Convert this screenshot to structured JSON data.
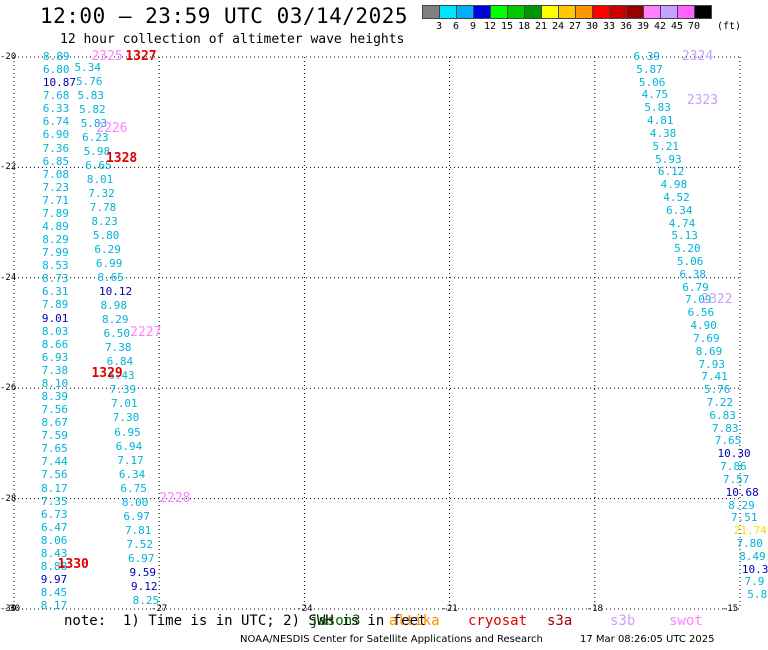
{
  "header": {
    "title": "12:00 — 23:59 UTC 03/14/2025",
    "subtitle": "12 hour collection of altimeter wave heights"
  },
  "colorbar": {
    "colors": [
      "#808080",
      "#00e5ff",
      "#00b0ff",
      "#0000e0",
      "#00ff00",
      "#00c800",
      "#009600",
      "#ffff00",
      "#ffc800",
      "#ff9600",
      "#ff0000",
      "#c80000",
      "#960000",
      "#ff80ff",
      "#c8a0ff",
      "#ff64ff",
      "#000000"
    ],
    "ticks": [
      "3",
      "6",
      "9",
      "12",
      "15",
      "18",
      "21",
      "24",
      "27",
      "30",
      "33",
      "36",
      "39",
      "42",
      "45",
      "70"
    ],
    "unit": "(ft)"
  },
  "axes": {
    "y_ticks": [
      "-20",
      "-22",
      "-24",
      "-26",
      "-28",
      "-30"
    ],
    "x_ticks": [
      "-30",
      "-27",
      "-24",
      "-21",
      "-18",
      "-15"
    ]
  },
  "passes": [
    {
      "id": "1327",
      "sat": "cryosat",
      "lon": -27.7,
      "lat": -20.0
    },
    {
      "id": "2325",
      "sat": "swot",
      "lon": -28.4,
      "lat": -20.0
    },
    {
      "id": "2226",
      "sat": "swot",
      "lon": -28.3,
      "lat": -21.3
    },
    {
      "id": "1328",
      "sat": "cryosat",
      "lon": -28.1,
      "lat": -21.85
    },
    {
      "id": "2227",
      "sat": "swot",
      "lon": -27.6,
      "lat": -25.0
    },
    {
      "id": "1329",
      "sat": "cryosat",
      "lon": -28.4,
      "lat": -25.75
    },
    {
      "id": "2228",
      "sat": "swot",
      "lon": -27.0,
      "lat": -28.0
    },
    {
      "id": "1330",
      "sat": "cryosat",
      "lon": -29.1,
      "lat": -29.2
    },
    {
      "id": "2324",
      "sat": "s3b",
      "lon": -16.2,
      "lat": -20.0
    },
    {
      "id": "2323",
      "sat": "s3b",
      "lon": -16.1,
      "lat": -20.8
    },
    {
      "id": "2322",
      "sat": "s3b",
      "lon": -15.8,
      "lat": -24.4
    }
  ],
  "tracks": [
    {
      "name": "track_a",
      "values": [
        "8.89",
        "6.80",
        "10.87",
        "7.68",
        "6.33",
        "6.74",
        "6.90",
        "7.36",
        "6.85",
        "7.08",
        "7.23",
        "7.71",
        "7.89",
        "4.89",
        "8.29",
        "7.99",
        "8.53",
        "8.73",
        "6.31",
        "7.89",
        "9.01",
        "8.03",
        "8.66",
        "6.93",
        "7.38",
        "8.10",
        "8.39",
        "7.56",
        "8.67",
        "7.59",
        "7.65",
        "7.44",
        "7.56",
        "8.17",
        "7.35",
        "6.73",
        "6.47",
        "8.06",
        "8.43",
        "8.88",
        "9.97",
        "8.45",
        "8.17"
      ],
      "colors": [
        "c",
        "c",
        "b",
        "c",
        "c",
        "c",
        "c",
        "c",
        "c",
        "c",
        "c",
        "c",
        "c",
        "c",
        "c",
        "c",
        "c",
        "c",
        "c",
        "c",
        "b",
        "c",
        "c",
        "c",
        "c",
        "c",
        "c",
        "c",
        "c",
        "c",
        "c",
        "c",
        "c",
        "c",
        "c",
        "c",
        "c",
        "c",
        "c",
        "c",
        "b",
        "c",
        "c"
      ],
      "lat_start": -20.0,
      "lat_end": -29.95,
      "lon_start": -29.4,
      "lon_end": -29.45
    },
    {
      "name": "track_b",
      "values": [
        "5.34",
        "5.76",
        "5.83",
        "5.82",
        "5.83",
        "6.23",
        "5.98",
        "6.65",
        "8.01",
        "7.32",
        "7.78",
        "8.23",
        "5.80",
        "6.29",
        "6.99",
        "8.65",
        "10.12",
        "8.98",
        "8.29",
        "6.50",
        "7.38",
        "6.84",
        "6.43",
        "7.39",
        "7.01",
        "7.30",
        "6.95",
        "6.94",
        "7.17",
        "6.34",
        "6.75",
        "8.00",
        "6.97",
        "7.81",
        "7.52",
        "6.97",
        "9.59",
        "9.12",
        "8.25"
      ],
      "colors": [
        "c",
        "c",
        "c",
        "c",
        "c",
        "c",
        "c",
        "c",
        "c",
        "c",
        "c",
        "c",
        "c",
        "c",
        "c",
        "c",
        "b",
        "c",
        "c",
        "c",
        "c",
        "c",
        "c",
        "c",
        "c",
        "c",
        "c",
        "c",
        "c",
        "c",
        "c",
        "c",
        "c",
        "c",
        "c",
        "c",
        "b",
        "b",
        "c"
      ],
      "lat_start": -20.2,
      "lat_end": -29.85,
      "lon_start": -28.75,
      "lon_end": -27.55
    },
    {
      "name": "track_c",
      "values": [
        "6.39",
        "5.87",
        "5.06",
        "4.75",
        "5.83",
        "4.81",
        "4.38",
        "5.21",
        "5.93",
        "6.12",
        "4.98",
        "4.52",
        "6.34",
        "4.74",
        "5.13",
        "5.20",
        "5.06",
        "6.38",
        "6.79",
        "7.09",
        "6.56",
        "4.90",
        "7.69",
        "8.69",
        "7.93",
        "7.41",
        "5.76",
        "7.22",
        "6.83",
        "7.83",
        "7.65",
        "10.30",
        "7.86",
        "7.57",
        "10.68",
        "8.29",
        "7.51",
        "21.74",
        "7.80",
        "8.49",
        "10.3",
        "7.9",
        "5.8"
      ],
      "colors": [
        "c",
        "c",
        "c",
        "c",
        "c",
        "c",
        "c",
        "c",
        "c",
        "c",
        "c",
        "c",
        "c",
        "c",
        "c",
        "c",
        "c",
        "c",
        "c",
        "c",
        "c",
        "c",
        "c",
        "c",
        "c",
        "c",
        "c",
        "c",
        "c",
        "c",
        "c",
        "b",
        "c",
        "c",
        "b",
        "c",
        "c",
        "y",
        "c",
        "c",
        "b",
        "c",
        "c"
      ],
      "lat_start": -20.0,
      "lat_end": -29.75,
      "lon_start": -17.2,
      "lon_end": -14.85
    }
  ],
  "note": "note:  1) Time is in UTC; 2) SWH is in feet",
  "legend": [
    {
      "label": "jason3",
      "color": "#006400"
    },
    {
      "label": "altika",
      "color": "#ff8c00"
    },
    {
      "label": "cryosat",
      "color": "#e00000"
    },
    {
      "label": "s3a",
      "color": "#a00000"
    },
    {
      "label": "s3b",
      "color": "#c8a0ff"
    },
    {
      "label": "swot",
      "color": "#ff80ff"
    }
  ],
  "footer": {
    "credit": "NOAA/NESDIS Center for Satellite Applications and Research",
    "timestamp": "17 Mar 08:26:05 UTC 2025"
  },
  "map": {
    "lon_min": -30,
    "lon_max": -15,
    "lat_min": -30,
    "lat_max": -20
  }
}
